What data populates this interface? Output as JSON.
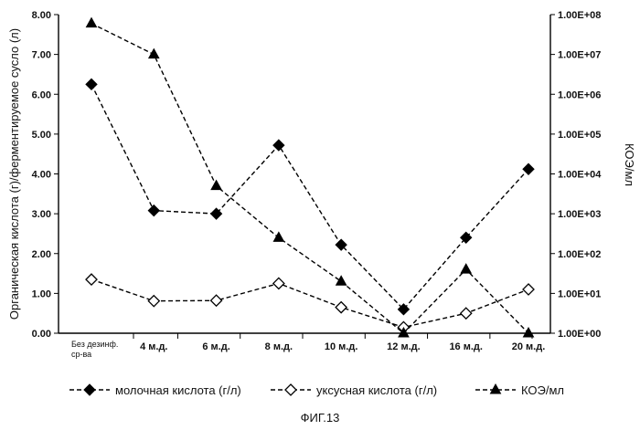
{
  "chart_data": {
    "type": "line",
    "categories": [
      "Без дезинф. ср-ва",
      "4 м.д.",
      "6 м.д.",
      "8 м.д.",
      "10 м.д.",
      "12 м.д.",
      "16 м.д.",
      "20 м.д."
    ],
    "series": [
      {
        "name": "молочная кислота (г/л)",
        "axis": "left",
        "marker": "filled-diamond",
        "line": "dashed",
        "values": [
          6.25,
          3.08,
          3.0,
          4.72,
          2.22,
          0.6,
          2.4,
          4.12
        ]
      },
      {
        "name": "уксусная кислота (г/л)",
        "axis": "left",
        "marker": "open-diamond",
        "line": "dashed",
        "values": [
          1.35,
          0.81,
          0.82,
          1.25,
          0.65,
          0.15,
          0.5,
          1.1
        ]
      },
      {
        "name": "КОЭ/мл",
        "axis": "right",
        "marker": "filled-triangle",
        "line": "dashed",
        "values": [
          60000000,
          10000000,
          5000,
          250,
          20,
          1,
          40,
          1
        ]
      }
    ],
    "ylabel": "Органическая кислота (г)/ферментируемое сусло (л)",
    "ylabel_right": "КОЭ/мл",
    "ylim": [
      0,
      8
    ],
    "y_ticks": [
      "0.00",
      "1.00",
      "2.00",
      "3.00",
      "4.00",
      "5.00",
      "6.00",
      "7.00",
      "8.00"
    ],
    "y2_scale": "log",
    "y2lim": [
      1,
      100000000
    ],
    "y2_ticks": [
      "1.00E+00",
      "1.00E+01",
      "1.00E+02",
      "1.00E+03",
      "1.00E+04",
      "1.00E+05",
      "1.00E+06",
      "1.00E+07",
      "1.00E+08"
    ],
    "x_tick_lines": [
      "Без дезинф.",
      "ср-ва"
    ],
    "grid": false,
    "legend": "bottom"
  },
  "caption": "ФИГ.13"
}
